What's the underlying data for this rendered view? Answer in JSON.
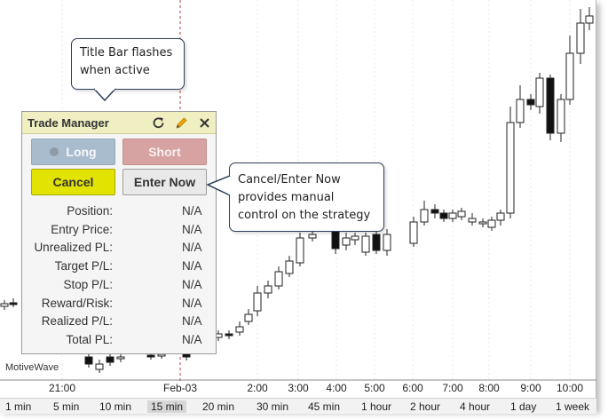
{
  "app": {
    "brand": "MotiveWave"
  },
  "time_axis": {
    "labels": [
      "21:00",
      "Feb-03",
      "2:00",
      "3:00",
      "4:00",
      "5:00",
      "6:00",
      "7:00",
      "8:00",
      "9:00",
      "10:00"
    ]
  },
  "timeframes": {
    "items": [
      "1 min",
      "5 min",
      "10 min",
      "15 min",
      "20 min",
      "30 min",
      "45 min",
      "1 hour",
      "2 hour",
      "4 hour",
      "1 day",
      "1 week"
    ],
    "active": "15 min"
  },
  "trade_manager": {
    "title": "Trade Manager",
    "icons": [
      "refresh-icon",
      "pencil-icon",
      "close-icon"
    ],
    "long_label": "Long",
    "short_label": "Short",
    "cancel_label": "Cancel",
    "enter_now_label": "Enter Now",
    "rows": [
      {
        "label": "Position:",
        "value": "N/A"
      },
      {
        "label": "Entry Price:",
        "value": "N/A"
      },
      {
        "label": "Unrealized PL:",
        "value": "N/A"
      },
      {
        "label": "Target P/L:",
        "value": "N/A"
      },
      {
        "label": "Stop P/L:",
        "value": "N/A"
      },
      {
        "label": "Reward/Risk:",
        "value": "N/A"
      },
      {
        "label": "Realized P/L:",
        "value": "N/A"
      },
      {
        "label": "Total PL:",
        "value": "N/A"
      }
    ]
  },
  "callouts": {
    "title_bar": [
      "Title Bar flashes",
      "when active"
    ],
    "enter_now": [
      "Cancel/Enter Now",
      "provides manual",
      "control on the strategy"
    ]
  },
  "colors": {
    "title_bar": "#efefc2",
    "long": "#a9bccd",
    "short": "#d7a2a2",
    "cancel": "#e3e300",
    "callout_border": "#2f3f5a"
  }
}
